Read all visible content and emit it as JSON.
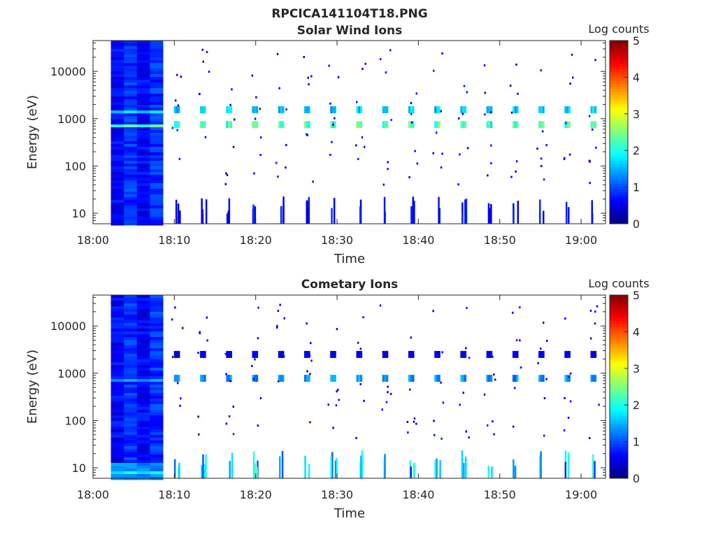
{
  "figure_title": "RPCICA141104T18.PNG",
  "chart_data": [
    {
      "type": "heatmap",
      "title": "Solar Wind Ions",
      "xlabel": "Time",
      "ylabel": "Energy (eV)",
      "xtick_labels": [
        "18:00",
        "18:10",
        "18:20",
        "18:30",
        "18:40",
        "18:50",
        "19:00"
      ],
      "xlim_minutes": [
        0,
        63
      ],
      "yscale": "log",
      "ytick_values": [
        10,
        100,
        1000,
        10000
      ],
      "ytick_labels": [
        "10",
        "100",
        "1000",
        "10000"
      ],
      "ylim": [
        6,
        45000
      ],
      "colorbar": {
        "label": "Log counts",
        "min": 0,
        "max": 5,
        "tick_labels": [
          "0",
          "1",
          "2",
          "3",
          "4",
          "5"
        ]
      },
      "initial_scan": {
        "start_minute": 2.2,
        "end_minute": 8.6
      },
      "sweep_minutes": [
        10.3,
        13.5,
        16.7,
        19.9,
        23.1,
        26.3,
        29.5,
        32.7,
        35.9,
        39.1,
        42.3,
        45.5,
        48.7,
        51.9,
        55.1,
        58.3,
        61.5
      ],
      "bands": [
        {
          "energy_ev": 750,
          "log_counts": 2.4
        },
        {
          "energy_ev": 1550,
          "log_counts": 1.8
        },
        {
          "energy_ev": 8,
          "log_counts": 0.8
        }
      ]
    },
    {
      "type": "heatmap",
      "title": "Cometary Ions",
      "xlabel": "Time",
      "ylabel": "Energy (eV)",
      "xtick_labels": [
        "18:00",
        "18:10",
        "18:20",
        "18:30",
        "18:40",
        "18:50",
        "19:00"
      ],
      "xlim_minutes": [
        0,
        63
      ],
      "yscale": "log",
      "ytick_values": [
        10,
        100,
        1000,
        10000
      ],
      "ytick_labels": [
        "10",
        "100",
        "1000",
        "10000"
      ],
      "ylim": [
        6,
        45000
      ],
      "colorbar": {
        "label": "Log counts",
        "min": 0,
        "max": 5,
        "tick_labels": [
          "0",
          "1",
          "2",
          "3",
          "4",
          "5"
        ]
      },
      "initial_scan": {
        "start_minute": 2.2,
        "end_minute": 8.6
      },
      "sweep_minutes": [
        10.3,
        13.5,
        16.7,
        19.9,
        23.1,
        26.3,
        29.5,
        32.7,
        35.9,
        39.1,
        42.3,
        45.5,
        48.7,
        51.9,
        55.1,
        58.3,
        61.5
      ],
      "bands": [
        {
          "energy_ev": 780,
          "log_counts": 1.5
        },
        {
          "energy_ev": 2500,
          "log_counts": 0.6
        },
        {
          "energy_ev": 9,
          "log_counts": 2.0
        }
      ]
    }
  ]
}
